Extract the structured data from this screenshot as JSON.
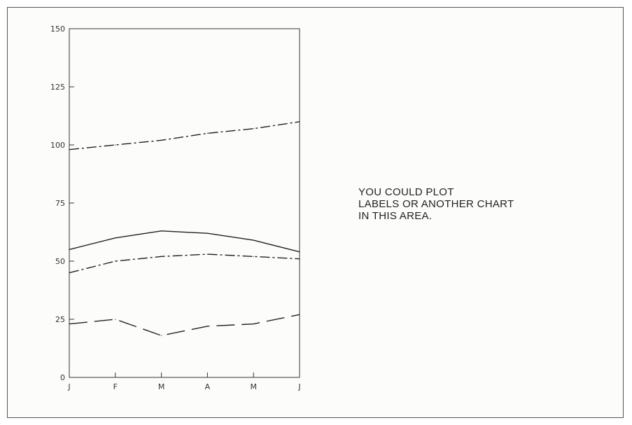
{
  "chart_data": {
    "type": "line",
    "categories": [
      "J",
      "F",
      "M",
      "A",
      "M",
      "J"
    ],
    "ylim": [
      0,
      150
    ],
    "yticks": [
      0,
      25,
      50,
      75,
      100,
      125,
      150
    ],
    "grid": false,
    "series": [
      {
        "values": [
          98,
          100,
          102,
          105,
          107,
          110
        ],
        "style": "dash-dot"
      },
      {
        "values": [
          55,
          60,
          63,
          62,
          59,
          54
        ],
        "style": "solid"
      },
      {
        "values": [
          45,
          50,
          52,
          53,
          52,
          51
        ],
        "style": "dash-dot"
      },
      {
        "values": [
          23,
          25,
          18,
          22,
          23,
          27
        ],
        "style": "long-dash"
      }
    ],
    "colors": {
      "line": "#222222",
      "axis": "#333333"
    }
  },
  "note": {
    "lines": [
      "YOU COULD PLOT",
      "LABELS OR ANOTHER CHART",
      "IN THIS AREA."
    ]
  }
}
